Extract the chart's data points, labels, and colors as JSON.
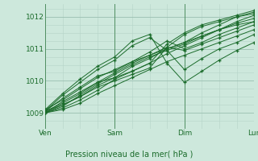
{
  "bg_color": "#cde8dc",
  "line_color": "#1a6b2a",
  "grid_color_major": "#9abfb0",
  "grid_color_minor": "#b5d4c8",
  "xlabel": "Pression niveau de la mer( hPa )",
  "xlim": [
    0,
    72
  ],
  "ylim": [
    1008.5,
    1012.4
  ],
  "yticks": [
    1009,
    1010,
    1011,
    1012
  ],
  "xticks": [
    0,
    24,
    48,
    72
  ],
  "xticklabels": [
    "Ven",
    "Sam",
    "Dim",
    "Lun"
  ],
  "series": [
    [
      0,
      1009.05,
      6,
      1009.25,
      12,
      1009.5,
      18,
      1009.85,
      24,
      1010.1,
      30,
      1010.45,
      36,
      1010.7,
      42,
      1011.0,
      48,
      1011.2,
      54,
      1011.5,
      60,
      1011.75,
      66,
      1012.0,
      72,
      1012.15
    ],
    [
      0,
      1009.0,
      6,
      1009.15,
      12,
      1009.4,
      18,
      1009.7,
      24,
      1010.05,
      30,
      1010.3,
      36,
      1010.55,
      42,
      1010.85,
      48,
      1011.1,
      54,
      1011.35,
      60,
      1011.6,
      66,
      1011.85,
      72,
      1012.05
    ],
    [
      0,
      1009.0,
      6,
      1009.2,
      12,
      1009.55,
      18,
      1009.9,
      24,
      1010.2,
      30,
      1010.5,
      36,
      1010.75,
      42,
      1010.95,
      48,
      1011.15,
      54,
      1011.4,
      60,
      1011.6,
      66,
      1011.8,
      72,
      1011.95
    ],
    [
      0,
      1009.05,
      6,
      1009.3,
      12,
      1009.6,
      18,
      1009.95,
      24,
      1010.25,
      30,
      1010.55,
      36,
      1010.8,
      42,
      1011.0,
      48,
      1011.2,
      54,
      1011.4,
      60,
      1011.6,
      66,
      1011.75,
      72,
      1011.85
    ],
    [
      0,
      1009.1,
      6,
      1009.4,
      12,
      1009.75,
      18,
      1010.1,
      24,
      1010.35,
      30,
      1010.6,
      36,
      1010.8,
      42,
      1011.05,
      48,
      1010.95,
      54,
      1011.15,
      60,
      1011.35,
      66,
      1011.55,
      72,
      1011.75
    ],
    [
      0,
      1009.05,
      6,
      1009.55,
      12,
      1009.95,
      18,
      1010.35,
      24,
      1010.65,
      30,
      1011.1,
      36,
      1011.35,
      42,
      1010.95,
      48,
      1010.35,
      54,
      1010.7,
      60,
      1011.0,
      66,
      1011.2,
      72,
      1011.45
    ],
    [
      0,
      1009.1,
      6,
      1009.6,
      12,
      1010.05,
      18,
      1010.45,
      24,
      1010.75,
      30,
      1011.25,
      36,
      1011.45,
      42,
      1010.55,
      48,
      1009.95,
      54,
      1010.3,
      60,
      1010.65,
      66,
      1010.95,
      72,
      1011.2
    ],
    [
      0,
      1009.0,
      6,
      1009.35,
      12,
      1009.65,
      18,
      1009.95,
      24,
      1010.1,
      30,
      1010.3,
      36,
      1010.55,
      42,
      1011.15,
      48,
      1011.5,
      54,
      1011.75,
      60,
      1011.9,
      66,
      1012.05,
      72,
      1012.2
    ],
    [
      0,
      1009.0,
      6,
      1009.25,
      12,
      1009.5,
      18,
      1009.8,
      24,
      1010.0,
      30,
      1010.2,
      36,
      1010.4,
      42,
      1011.05,
      48,
      1011.45,
      54,
      1011.7,
      60,
      1011.85,
      66,
      1012.0,
      72,
      1012.1
    ],
    [
      0,
      1009.05,
      6,
      1009.45,
      12,
      1009.8,
      18,
      1010.15,
      24,
      1010.3,
      30,
      1010.6,
      36,
      1010.9,
      42,
      1011.25,
      48,
      1011.0,
      54,
      1011.2,
      60,
      1011.45,
      66,
      1011.65,
      72,
      1011.85
    ],
    [
      0,
      1009.0,
      6,
      1009.1,
      12,
      1009.3,
      18,
      1009.6,
      24,
      1009.85,
      30,
      1010.1,
      36,
      1010.35,
      42,
      1010.6,
      48,
      1010.8,
      54,
      1011.0,
      60,
      1011.2,
      66,
      1011.4,
      72,
      1011.6
    ]
  ]
}
